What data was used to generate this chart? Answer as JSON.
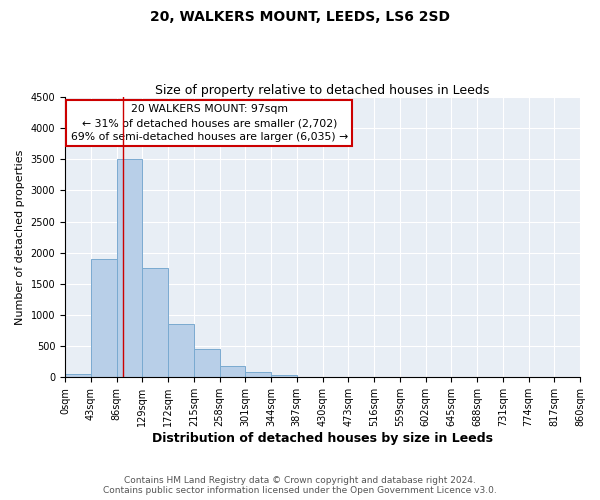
{
  "title": "20, WALKERS MOUNT, LEEDS, LS6 2SD",
  "subtitle": "Size of property relative to detached houses in Leeds",
  "xlabel": "Distribution of detached houses by size in Leeds",
  "ylabel": "Number of detached properties",
  "bin_edges": [
    0,
    43,
    86,
    129,
    172,
    215,
    258,
    301,
    344,
    387,
    430,
    473,
    516,
    559,
    602,
    645,
    688,
    731,
    774,
    817,
    860
  ],
  "bar_heights": [
    50,
    1900,
    3500,
    1750,
    850,
    450,
    175,
    90,
    40,
    10,
    0,
    0,
    0,
    0,
    0,
    0,
    0,
    0,
    0,
    0
  ],
  "bar_color": "#b8cfe8",
  "bar_edge_color": "#7aaad0",
  "ylim": [
    0,
    4500
  ],
  "yticks": [
    0,
    500,
    1000,
    1500,
    2000,
    2500,
    3000,
    3500,
    4000,
    4500
  ],
  "property_size": 97,
  "marker_line_color": "#cc0000",
  "annotation_title": "20 WALKERS MOUNT: 97sqm",
  "annotation_line1": "← 31% of detached houses are smaller (2,702)",
  "annotation_line2": "69% of semi-detached houses are larger (6,035) →",
  "annotation_box_color": "#ffffff",
  "annotation_box_edge_color": "#cc0000",
  "footer_line1": "Contains HM Land Registry data © Crown copyright and database right 2024.",
  "footer_line2": "Contains public sector information licensed under the Open Government Licence v3.0.",
  "background_color": "#e8eef5",
  "tick_labels": [
    "0sqm",
    "43sqm",
    "86sqm",
    "129sqm",
    "172sqm",
    "215sqm",
    "258sqm",
    "301sqm",
    "344sqm",
    "387sqm",
    "430sqm",
    "473sqm",
    "516sqm",
    "559sqm",
    "602sqm",
    "645sqm",
    "688sqm",
    "731sqm",
    "774sqm",
    "817sqm",
    "860sqm"
  ],
  "title_fontsize": 10,
  "subtitle_fontsize": 9,
  "xlabel_fontsize": 9,
  "ylabel_fontsize": 8,
  "tick_fontsize": 7,
  "footer_fontsize": 6.5
}
